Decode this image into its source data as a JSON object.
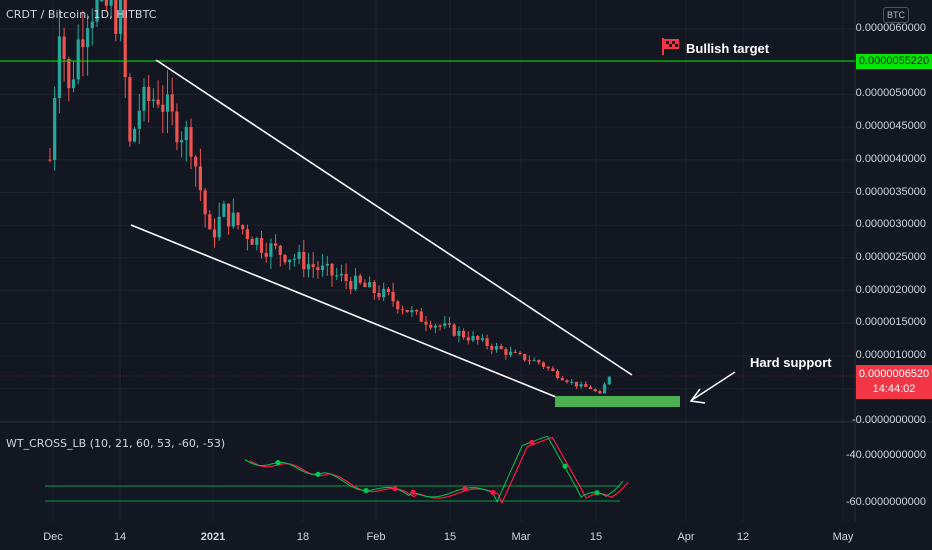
{
  "header": {
    "title": "CRDT / Bitcoin, 1D, HITBTC",
    "currency": "BTC"
  },
  "indicator": {
    "title": "WT_CROSS_LB (10, 21, 60, 53, -60, -53)",
    "y_labels": [
      "-40.0000000000",
      "-60.0000000000"
    ]
  },
  "annotations": {
    "bullish_target": "Bullish target",
    "hard_support": "Hard support"
  },
  "price_tags": {
    "target": "0.0000055220",
    "last": "0.0000006520",
    "countdown": "14:44:02"
  },
  "colors": {
    "up": "#26a69a",
    "down": "#ef5350",
    "target_line": "#00e600",
    "support_zone": "#4caf50",
    "wt1": "#00c853",
    "wt2": "#ff1744"
  },
  "chart_data": {
    "type": "candlestick",
    "title": "CRDT / Bitcoin, 1D, HITBTC",
    "x_ticks": [
      "Dec",
      "14",
      "2021",
      "18",
      "Feb",
      "15",
      "Mar",
      "15",
      "Apr",
      "12",
      "May"
    ],
    "y_ticks": [
      "0.0000060000",
      "0.0000055000",
      "0.0000050000",
      "0.0000045000",
      "0.0000040000",
      "0.0000035000",
      "0.0000030000",
      "0.0000025000",
      "0.0000020000",
      "0.0000015000",
      "0.0000010000",
      "0.0000005000",
      "-0.0000000000"
    ],
    "ylim": [
      -0.0,
      6.1e-06
    ],
    "levels": {
      "bullish_target": 5.522e-06,
      "last_price": 6.52e-07
    },
    "support_zone": [
      2.5e-07,
      4e-07
    ],
    "channel": {
      "upper": [
        [
          17,
          5.5e-06
        ],
        [
          123,
          7e-07
        ]
      ],
      "lower": [
        [
          -1,
          3e-06
        ],
        [
          99,
          4.5e-07
        ]
      ]
    }
  }
}
